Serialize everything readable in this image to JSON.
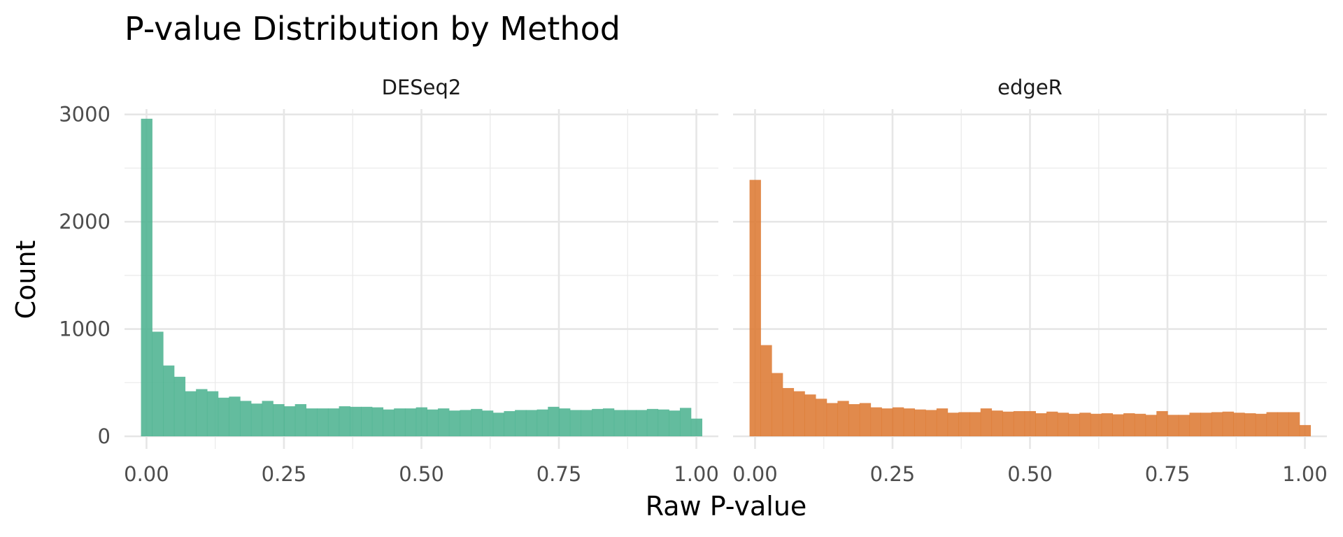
{
  "chart_data": {
    "type": "bar",
    "title": "P-value Distribution by Method",
    "xlabel": "Raw P-value",
    "ylabel": "Count",
    "xlim": [
      -0.04,
      1.04
    ],
    "ylim": [
      0,
      3050
    ],
    "x_ticks": [
      "0.00",
      "0.25",
      "0.50",
      "0.75",
      "1.00"
    ],
    "y_ticks": [
      "0",
      "1000",
      "2000",
      "3000"
    ],
    "grid": true,
    "legend": "none",
    "bin_centers": [
      0.0,
      0.02,
      0.04,
      0.06,
      0.08,
      0.1,
      0.12,
      0.14,
      0.16,
      0.18,
      0.2,
      0.22,
      0.24,
      0.26,
      0.28,
      0.3,
      0.32,
      0.34,
      0.36,
      0.38,
      0.4,
      0.42,
      0.44,
      0.46,
      0.48,
      0.5,
      0.52,
      0.54,
      0.56,
      0.58,
      0.6,
      0.62,
      0.64,
      0.66,
      0.68,
      0.7,
      0.72,
      0.74,
      0.76,
      0.78,
      0.8,
      0.82,
      0.84,
      0.86,
      0.88,
      0.9,
      0.92,
      0.94,
      0.96,
      0.98,
      1.0
    ],
    "panels": [
      {
        "name": "DESeq2",
        "color": "#4DB391",
        "values": [
          2960,
          975,
          660,
          555,
          420,
          440,
          420,
          360,
          370,
          330,
          305,
          330,
          300,
          280,
          300,
          260,
          260,
          260,
          280,
          275,
          275,
          270,
          250,
          260,
          260,
          270,
          250,
          260,
          240,
          245,
          255,
          240,
          220,
          235,
          245,
          245,
          250,
          275,
          260,
          245,
          245,
          255,
          260,
          245,
          245,
          245,
          255,
          250,
          240,
          265,
          165
        ]
      },
      {
        "name": "edgeR",
        "color": "#DD7A33",
        "values": [
          2390,
          850,
          590,
          450,
          420,
          390,
          350,
          310,
          330,
          300,
          310,
          270,
          260,
          270,
          260,
          250,
          245,
          260,
          220,
          225,
          225,
          260,
          240,
          230,
          235,
          235,
          215,
          230,
          220,
          210,
          220,
          210,
          215,
          205,
          215,
          210,
          200,
          235,
          200,
          200,
          220,
          220,
          225,
          230,
          220,
          215,
          210,
          225,
          225,
          225,
          105
        ]
      }
    ]
  }
}
